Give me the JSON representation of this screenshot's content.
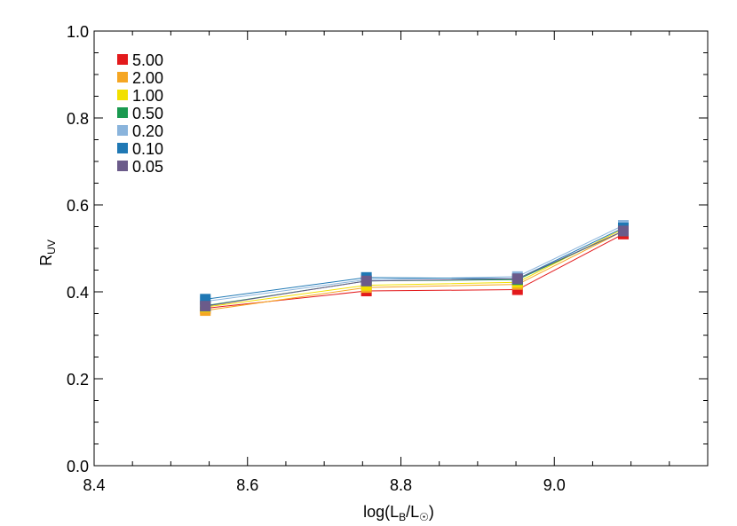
{
  "chart_data": {
    "type": "line",
    "title": "",
    "xlabel": "log(L_B/L_☉)",
    "xlabel_main": "log(L",
    "xlabel_sub1": "B",
    "xlabel_mid": "/L",
    "xlabel_sub2": "☉",
    "xlabel_end": ")",
    "ylabel": "R_UV",
    "ylabel_main": "R",
    "ylabel_sub": "UV",
    "xlim": [
      8.4,
      9.2
    ],
    "ylim": [
      0.0,
      1.0
    ],
    "x_ticks": [
      "8.4",
      "8.6",
      "8.8",
      "9.0"
    ],
    "y_ticks": [
      "0.0",
      "0.2",
      "0.4",
      "0.6",
      "0.8",
      "1.0"
    ],
    "grid": false,
    "legend_position": "top-left",
    "x": [
      8.545,
      8.755,
      8.952,
      9.09
    ],
    "series": [
      {
        "name": "5.00",
        "color": "#e31a1c",
        "values": [
          0.362,
          0.402,
          0.405,
          0.533
        ]
      },
      {
        "name": "2.00",
        "color": "#f5a623",
        "values": [
          0.357,
          0.41,
          0.417,
          0.54
        ]
      },
      {
        "name": "1.00",
        "color": "#f2e000",
        "values": [
          0.365,
          0.415,
          0.422,
          0.545
        ]
      },
      {
        "name": "0.50",
        "color": "#1a9a50",
        "values": [
          0.368,
          0.425,
          0.428,
          0.54
        ]
      },
      {
        "name": "0.20",
        "color": "#8ab4dc",
        "values": [
          0.378,
          0.428,
          0.435,
          0.553
        ]
      },
      {
        "name": "0.10",
        "color": "#1f78b4",
        "values": [
          0.383,
          0.433,
          0.43,
          0.547
        ]
      },
      {
        "name": "0.05",
        "color": "#6b5b8a",
        "values": [
          0.367,
          0.425,
          0.43,
          0.54
        ]
      }
    ]
  }
}
